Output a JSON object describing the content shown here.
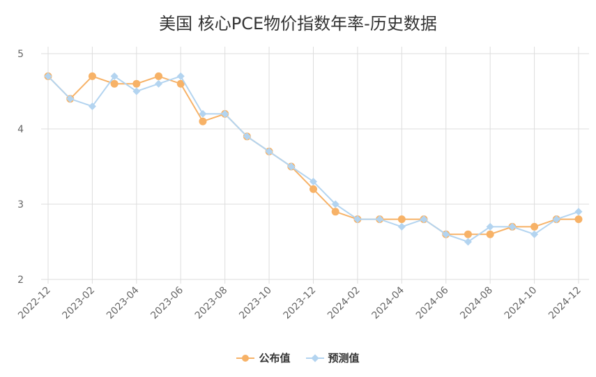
{
  "chart_data": {
    "type": "line",
    "title": "美国 核心PCE物价指数年率-历史数据",
    "categories": [
      "2022-12",
      "2023-01",
      "2023-02",
      "2023-03",
      "2023-04",
      "2023-05",
      "2023-06",
      "2023-07",
      "2023-08",
      "2023-09",
      "2023-10",
      "2023-11",
      "2023-12",
      "2024-01",
      "2024-02",
      "2024-03",
      "2024-04",
      "2024-05",
      "2024-06",
      "2024-07",
      "2024-08",
      "2024-09",
      "2024-10",
      "2024-11",
      "2024-12"
    ],
    "x_tick_labels": [
      "2022-12",
      "2023-02",
      "2023-04",
      "2023-06",
      "2023-08",
      "2023-10",
      "2023-12",
      "2024-02",
      "2024-04",
      "2024-06",
      "2024-08",
      "2024-10",
      "2024-12"
    ],
    "y_ticks": [
      "2",
      "3",
      "4",
      "5"
    ],
    "ylim": [
      2,
      5
    ],
    "grid": true,
    "legend_position": "bottom",
    "series": [
      {
        "name": "公布值",
        "color": "#f7b267",
        "marker": "circle",
        "values": [
          4.7,
          4.4,
          4.7,
          4.6,
          4.6,
          4.7,
          4.6,
          4.1,
          4.2,
          3.9,
          3.7,
          3.5,
          3.2,
          2.9,
          2.8,
          2.8,
          2.8,
          2.8,
          2.6,
          2.6,
          2.6,
          2.7,
          2.7,
          2.8,
          2.8
        ]
      },
      {
        "name": "预测值",
        "color": "#b3d4f0",
        "marker": "diamond",
        "values": [
          4.7,
          4.4,
          4.3,
          4.7,
          4.5,
          4.6,
          4.7,
          4.2,
          4.2,
          3.9,
          3.7,
          3.5,
          3.3,
          3.0,
          2.8,
          2.8,
          2.7,
          2.8,
          2.6,
          2.5,
          2.7,
          2.7,
          2.6,
          2.8,
          2.9
        ]
      }
    ]
  }
}
